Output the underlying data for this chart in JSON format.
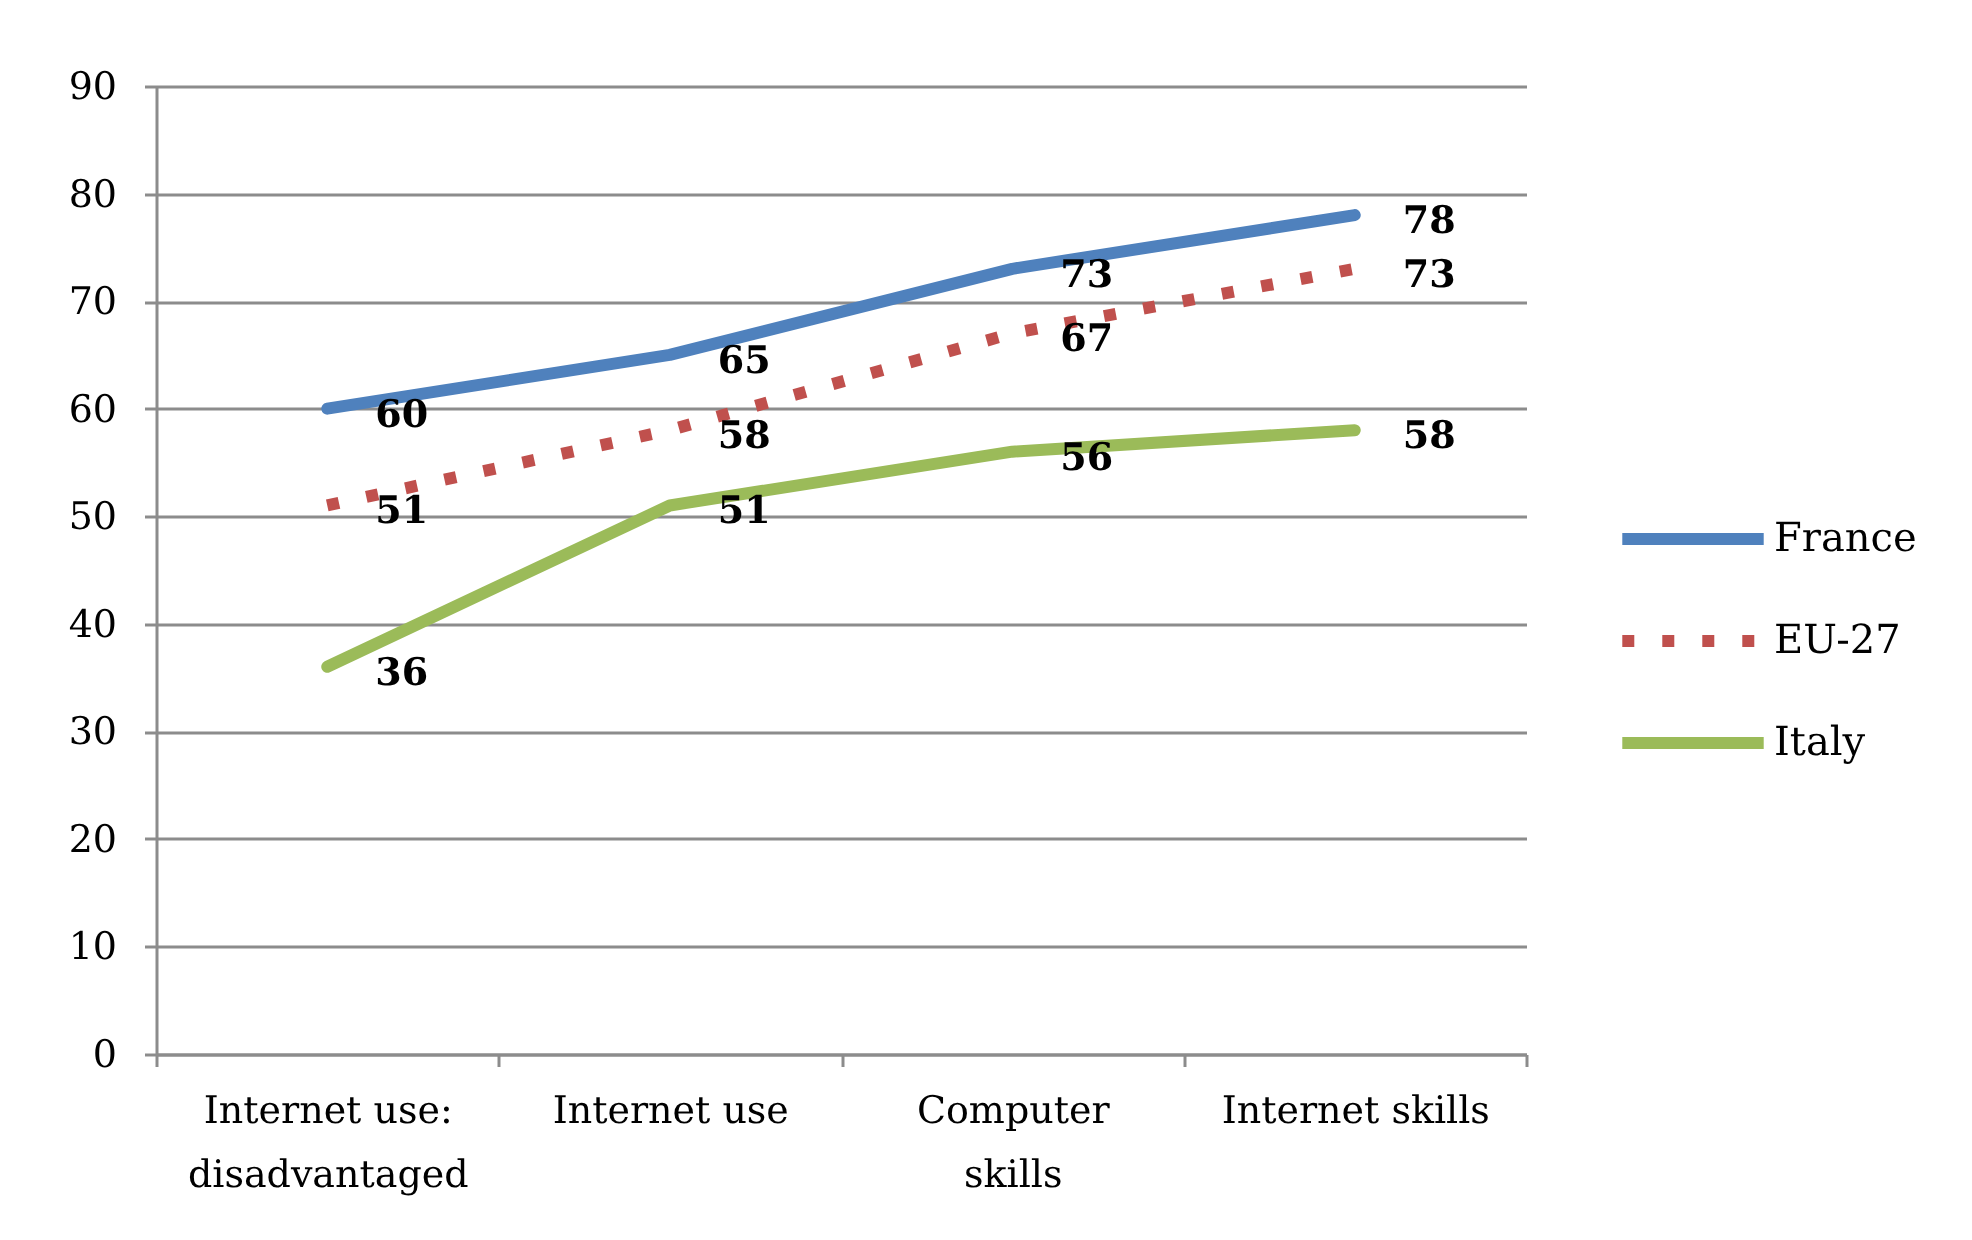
{
  "chart_data": {
    "type": "line",
    "categories": [
      "Internet use:\ndisadvantaged",
      "Internet use",
      "Computer\nskills",
      "Internet skills"
    ],
    "series": [
      {
        "name": "France",
        "color": "#4f81bd",
        "values": [
          60,
          65,
          73,
          78
        ]
      },
      {
        "name": "EU-27",
        "color": "#c0504d",
        "values": [
          51,
          58,
          67,
          73
        ],
        "line_style": "dotted"
      },
      {
        "name": "Italy",
        "color": "#9bbb59",
        "values": [
          36,
          51,
          56,
          58
        ]
      }
    ],
    "ylim": [
      0,
      90
    ],
    "yticks": [
      0,
      10,
      20,
      30,
      40,
      50,
      60,
      70,
      80,
      90
    ],
    "grid": "y",
    "legend": "right",
    "data_labels": true
  }
}
